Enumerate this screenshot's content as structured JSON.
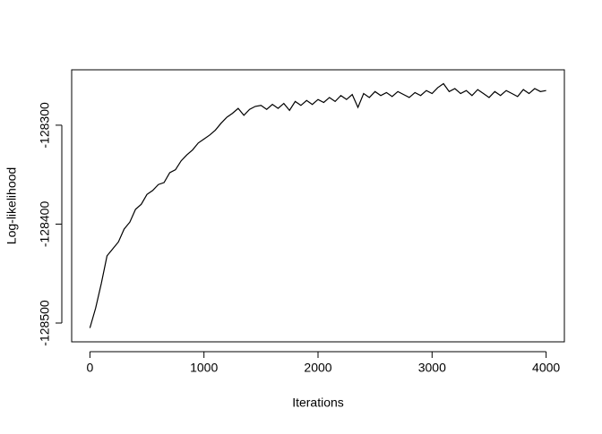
{
  "chart_data": {
    "type": "line",
    "xlabel": "Iterations",
    "ylabel": "Log-likelihood",
    "x": [
      0,
      50,
      100,
      150,
      200,
      250,
      300,
      350,
      400,
      450,
      500,
      550,
      600,
      650,
      700,
      750,
      800,
      850,
      900,
      950,
      1000,
      1050,
      1100,
      1150,
      1200,
      1250,
      1300,
      1350,
      1400,
      1450,
      1500,
      1550,
      1600,
      1650,
      1700,
      1750,
      1800,
      1850,
      1900,
      1950,
      2000,
      2050,
      2100,
      2150,
      2200,
      2250,
      2300,
      2350,
      2400,
      2450,
      2500,
      2550,
      2600,
      2650,
      2700,
      2750,
      2800,
      2850,
      2900,
      2950,
      3000,
      3050,
      3100,
      3150,
      3200,
      3250,
      3300,
      3350,
      3400,
      3450,
      3500,
      3550,
      3600,
      3650,
      3700,
      3750,
      3800,
      3850,
      3900,
      3950,
      4000
    ],
    "values": [
      -128505,
      -128485,
      -128460,
      -128432,
      -128425,
      -128418,
      -128405,
      -128398,
      -128385,
      -128380,
      -128370,
      -128366,
      -128360,
      -128358,
      -128348,
      -128345,
      -128336,
      -128330,
      -128325,
      -128318,
      -128314,
      -128310,
      -128305,
      -128298,
      -128292,
      -128288,
      -128283,
      -128290,
      -128284,
      -128281,
      -128280,
      -128284,
      -128279,
      -128283,
      -128278,
      -128285,
      -128276,
      -128280,
      -128275,
      -128279,
      -128274,
      -128277,
      -128272,
      -128276,
      -128270,
      -128274,
      -128269,
      -128282,
      -128268,
      -128272,
      -128266,
      -128270,
      -128267,
      -128271,
      -128266,
      -128269,
      -128272,
      -128267,
      -128270,
      -128265,
      -128268,
      -128262,
      -128258,
      -128266,
      -128263,
      -128268,
      -128265,
      -128270,
      -128264,
      -128268,
      -128272,
      -128266,
      -128270,
      -128265,
      -128268,
      -128271,
      -128264,
      -128268,
      -128263,
      -128266,
      -128265
    ],
    "color": "#000000",
    "xlim": [
      -160,
      4160
    ],
    "xticks": [
      0,
      1000,
      2000,
      3000,
      4000
    ],
    "ylim": [
      -128519,
      -128244
    ],
    "yticks": [
      -128500,
      -128400,
      -128300
    ]
  }
}
